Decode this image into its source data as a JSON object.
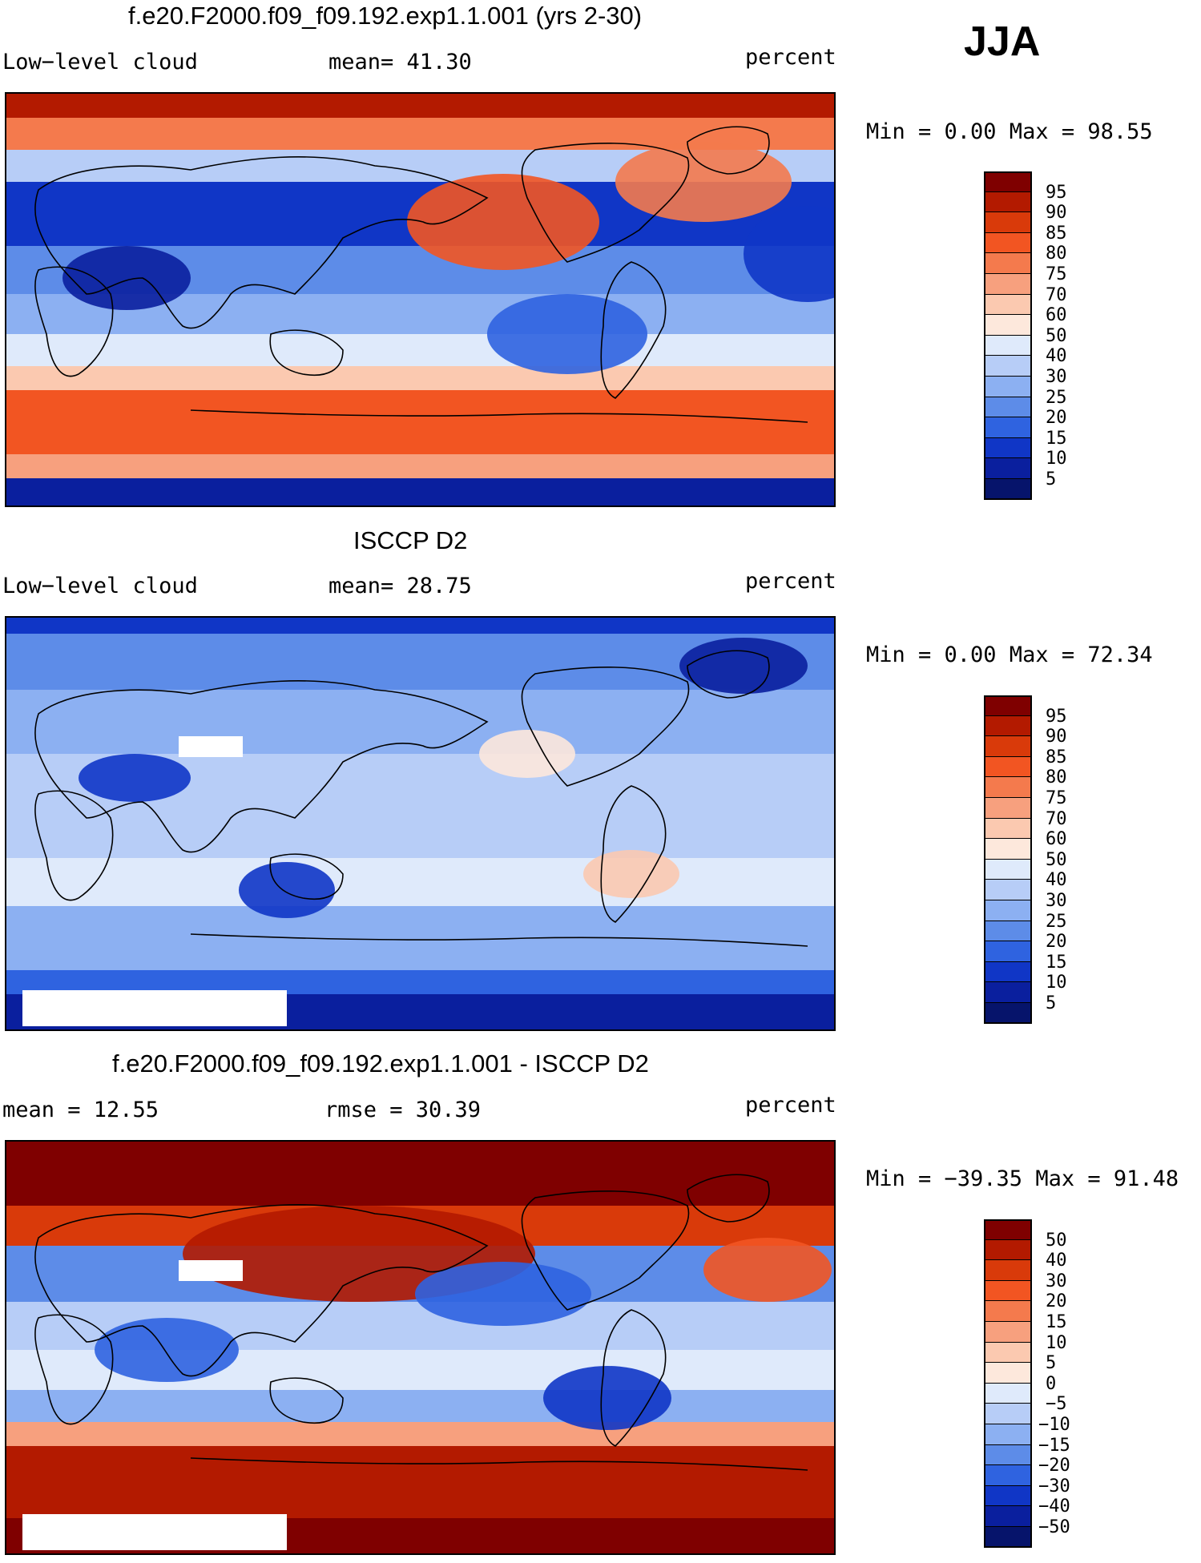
{
  "season": "JJA",
  "panels": [
    {
      "title": "f.e20.F2000.f09_f09.192.exp1.1.001 (yrs 2-30)",
      "left_label": "Low−level cloud",
      "center_label": "mean=   41.30",
      "right_label": "percent",
      "minmax": "Min =     0.00 Max =   98.55",
      "palette": "full",
      "colorbar_labels": [
        "95",
        "90",
        "85",
        "80",
        "75",
        "70",
        "60",
        "50",
        "40",
        "30",
        "25",
        "20",
        "15",
        "10",
        "5"
      ]
    },
    {
      "title": "ISCCP D2",
      "left_label": "Low−level cloud",
      "center_label": "mean=   28.75",
      "right_label": "percent",
      "minmax": "Min =     0.00 Max =   72.34",
      "palette": "obs",
      "colorbar_labels": [
        "95",
        "90",
        "85",
        "80",
        "75",
        "70",
        "60",
        "50",
        "40",
        "30",
        "25",
        "20",
        "15",
        "10",
        "5"
      ]
    },
    {
      "title": "f.e20.F2000.f09_f09.192.exp1.1.001 - ISCCP D2",
      "left_label": "mean  =   12.55",
      "center_label": "rmse  =   30.39",
      "right_label": "percent",
      "minmax": "Min = −39.35 Max =   91.48",
      "palette": "diff",
      "colorbar_labels": [
        "50",
        "40",
        "30",
        "20",
        "15",
        "10",
        "5",
        "0",
        "−5",
        "−10",
        "−15",
        "−20",
        "−30",
        "−40",
        "−50"
      ]
    }
  ],
  "colors": {
    "levels": [
      "#7f0000",
      "#b31a00",
      "#d93a0a",
      "#f25522",
      "#f47a4d",
      "#f7a07e",
      "#fbc9b0",
      "#fde8dc",
      "#dfeafb",
      "#b7cdf7",
      "#8cb0f2",
      "#5d8ce8",
      "#2f63e0",
      "#1036c6",
      "#0a1f9e",
      "#06146b"
    ]
  }
}
